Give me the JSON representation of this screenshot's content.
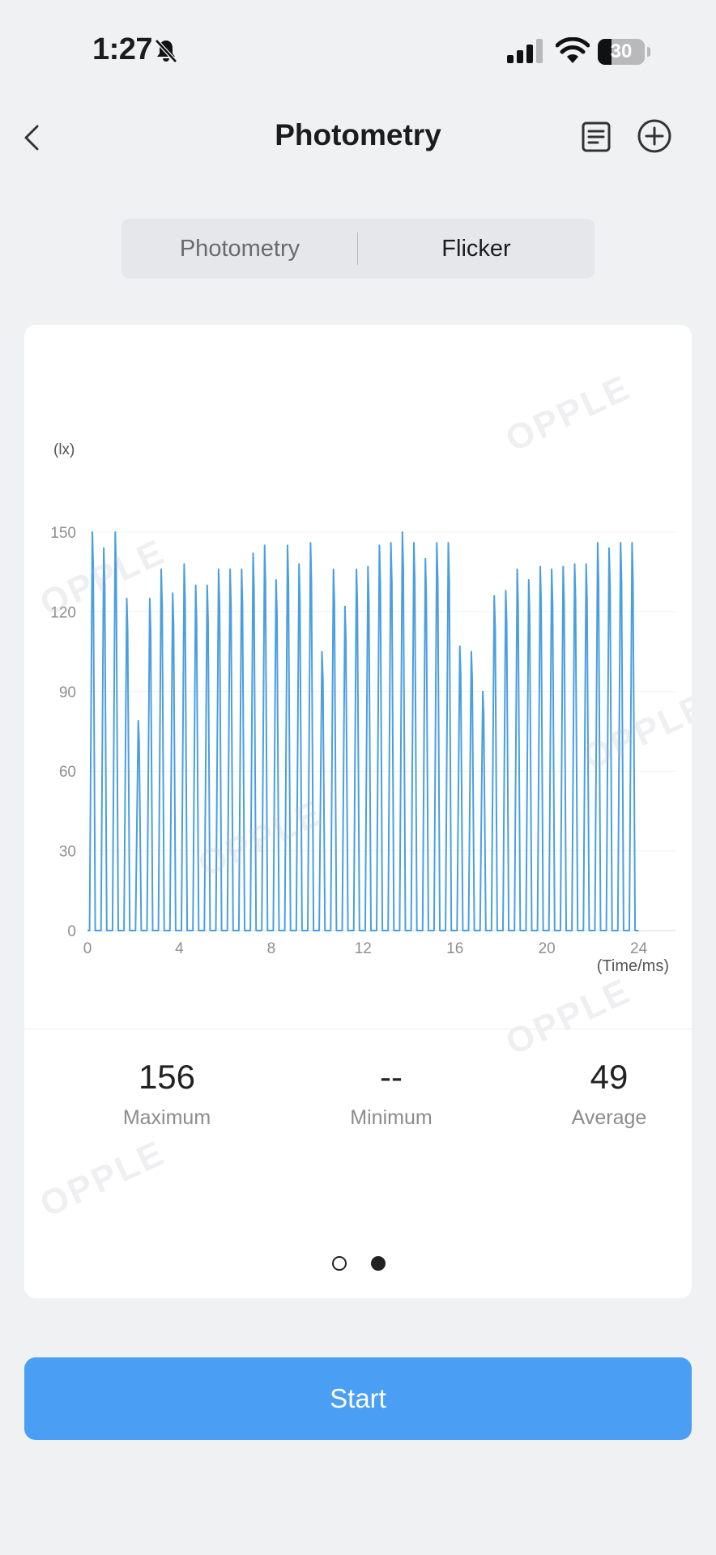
{
  "status_bar": {
    "time": "1:27",
    "battery": "30",
    "battery_level": 0.3
  },
  "header": {
    "title": "Photometry"
  },
  "segmented": {
    "options": [
      "Photometry",
      "Flicker"
    ],
    "selected": "Flicker"
  },
  "watermark": "OPPLE",
  "chart_data": {
    "type": "line",
    "title": "",
    "xlabel": "(Time/ms)",
    "ylabel": "(lx)",
    "xlim": [
      0,
      25.6
    ],
    "ylim": [
      0,
      150
    ],
    "x_ticks": [
      "0",
      "4",
      "8",
      "12",
      "16",
      "20",
      "24"
    ],
    "y_ticks": [
      "0",
      "30",
      "60",
      "90",
      "120",
      "150"
    ],
    "grid": true,
    "legend": "none",
    "color": "#4a9fe0",
    "series": [
      {
        "pulse_interval_ms": 0.5,
        "peaks": [
          152,
          144,
          152,
          125,
          79,
          125,
          136,
          127,
          138,
          130,
          130,
          136,
          136,
          136,
          142,
          145,
          132,
          145,
          138,
          146,
          105,
          136,
          122,
          136,
          137,
          145,
          146,
          152,
          146,
          140,
          146,
          146,
          107,
          105,
          90,
          126,
          128,
          136,
          132,
          137,
          136,
          137,
          138,
          138,
          146,
          144,
          146,
          146
        ]
      }
    ]
  },
  "stats": [
    {
      "value": "156",
      "label": "Maximum"
    },
    {
      "value": "--",
      "label": "Minimum"
    },
    {
      "value": "49",
      "label": "Average"
    }
  ],
  "pager": {
    "total": 2,
    "active": 2
  },
  "start_button": {
    "label": "Start"
  }
}
